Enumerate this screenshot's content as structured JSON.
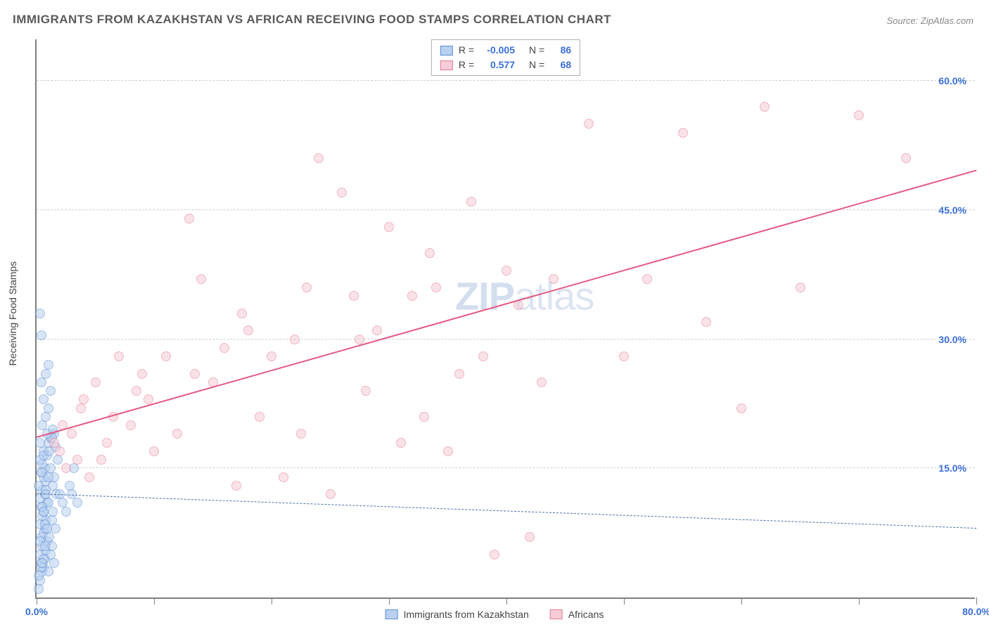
{
  "title": "IMMIGRANTS FROM KAZAKHSTAN VS AFRICAN RECEIVING FOOD STAMPS CORRELATION CHART",
  "source": "Source: ZipAtlas.com",
  "ylabel": "Receiving Food Stamps",
  "watermark_bold": "ZIP",
  "watermark_light": "atlas",
  "chart": {
    "type": "scatter",
    "xlim": [
      0,
      80
    ],
    "ylim": [
      0,
      65
    ],
    "xtick_positions": [
      0,
      10,
      20,
      30,
      40,
      50,
      60,
      70,
      80
    ],
    "xtick_labels_shown": {
      "0": "0.0%",
      "80": "80.0%"
    },
    "ytick_positions": [
      15,
      30,
      45,
      60
    ],
    "ytick_labels": [
      "15.0%",
      "30.0%",
      "45.0%",
      "60.0%"
    ],
    "grid_color": "#d0d0d0",
    "axis_color": "#808080",
    "tick_label_color": "#3a6fd8",
    "background_color": "#ffffff",
    "marker_radius": 7,
    "marker_border_width": 1.2,
    "series": [
      {
        "name": "Immigrants from Kazakhstan",
        "fill": "#b9d1f0",
        "stroke": "#5a8fd6",
        "fill_opacity": 0.55,
        "R": "-0.005",
        "N": "86",
        "trendline": {
          "y_at_x0": 12.0,
          "y_at_x80": 8.0,
          "style": "dashed",
          "color": "#4a6fa8",
          "width": 1.5
        },
        "points": [
          [
            0.2,
            1
          ],
          [
            0.3,
            2
          ],
          [
            0.5,
            3
          ],
          [
            0.6,
            3.5
          ],
          [
            0.4,
            4
          ],
          [
            0.7,
            4.5
          ],
          [
            0.3,
            5
          ],
          [
            0.8,
            5.5
          ],
          [
            0.5,
            6
          ],
          [
            0.9,
            6.5
          ],
          [
            0.4,
            7
          ],
          [
            0.6,
            7.5
          ],
          [
            0.7,
            8
          ],
          [
            0.3,
            8.5
          ],
          [
            0.8,
            9
          ],
          [
            0.5,
            9.5
          ],
          [
            0.6,
            10
          ],
          [
            0.4,
            10.5
          ],
          [
            0.9,
            11
          ],
          [
            0.3,
            11.5
          ],
          [
            0.7,
            12
          ],
          [
            0.5,
            12.5
          ],
          [
            0.2,
            13
          ],
          [
            0.8,
            13.5
          ],
          [
            0.6,
            14
          ],
          [
            0.4,
            14.5
          ],
          [
            0.7,
            15
          ],
          [
            0.5,
            15.5
          ],
          [
            0.3,
            16
          ],
          [
            0.9,
            16.5
          ],
          [
            0.6,
            17
          ],
          [
            1.0,
            3
          ],
          [
            1.2,
            5
          ],
          [
            1.1,
            7
          ],
          [
            1.3,
            9
          ],
          [
            1.0,
            11
          ],
          [
            1.4,
            13
          ],
          [
            1.2,
            15
          ],
          [
            1.5,
            4
          ],
          [
            1.3,
            6
          ],
          [
            1.6,
            8
          ],
          [
            1.4,
            10
          ],
          [
            1.7,
            12
          ],
          [
            1.5,
            14
          ],
          [
            1.8,
            16
          ],
          [
            1.0,
            18
          ],
          [
            1.2,
            18.5
          ],
          [
            1.5,
            19
          ],
          [
            0.5,
            20
          ],
          [
            0.8,
            21
          ],
          [
            1.0,
            22
          ],
          [
            0.6,
            23
          ],
          [
            1.2,
            24
          ],
          [
            0.4,
            25
          ],
          [
            0.8,
            26
          ],
          [
            1.0,
            27
          ],
          [
            0.3,
            33
          ],
          [
            0.4,
            30.5
          ],
          [
            2.0,
            12
          ],
          [
            2.2,
            11
          ],
          [
            2.5,
            10
          ],
          [
            2.8,
            13
          ],
          [
            3.0,
            12
          ],
          [
            3.2,
            15
          ],
          [
            3.5,
            11
          ],
          [
            0.2,
            2.5
          ],
          [
            0.4,
            3.5
          ],
          [
            0.6,
            4.5
          ],
          [
            0.3,
            6.5
          ],
          [
            0.7,
            8.5
          ],
          [
            0.5,
            10.5
          ],
          [
            0.8,
            12.5
          ],
          [
            0.4,
            14.5
          ],
          [
            0.6,
            16.5
          ],
          [
            0.3,
            18
          ],
          [
            1.1,
            17
          ],
          [
            1.3,
            18.5
          ],
          [
            1.6,
            17.5
          ],
          [
            0.9,
            19
          ],
          [
            1.4,
            19.5
          ],
          [
            0.5,
            4
          ],
          [
            0.7,
            6
          ],
          [
            0.9,
            8
          ],
          [
            0.6,
            10
          ],
          [
            0.8,
            12
          ],
          [
            1.0,
            14
          ]
        ]
      },
      {
        "name": "Africans",
        "fill": "#f6cdd7",
        "stroke": "#e47a97",
        "fill_opacity": 0.55,
        "R": "0.577",
        "N": "68",
        "trendline": {
          "y_at_x0": 18.5,
          "y_at_x80": 49.5,
          "style": "solid",
          "color": "#e55a84",
          "width": 2.5
        },
        "points": [
          [
            2,
            17
          ],
          [
            2.5,
            15
          ],
          [
            3,
            19
          ],
          [
            3.5,
            16
          ],
          [
            4,
            23
          ],
          [
            4.5,
            14
          ],
          [
            5,
            25
          ],
          [
            6,
            18
          ],
          [
            7,
            28
          ],
          [
            8,
            20
          ],
          [
            8.5,
            24
          ],
          [
            9,
            26
          ],
          [
            10,
            17
          ],
          [
            11,
            28
          ],
          [
            12,
            19
          ],
          [
            13,
            44
          ],
          [
            14,
            37
          ],
          [
            15,
            25
          ],
          [
            16,
            29
          ],
          [
            17,
            13
          ],
          [
            18,
            31
          ],
          [
            19,
            21
          ],
          [
            20,
            28
          ],
          [
            21,
            14
          ],
          [
            22,
            30
          ],
          [
            23,
            36
          ],
          [
            24,
            51
          ],
          [
            25,
            12
          ],
          [
            26,
            47
          ],
          [
            27,
            35
          ],
          [
            28,
            24
          ],
          [
            29,
            31
          ],
          [
            30,
            43
          ],
          [
            31,
            18
          ],
          [
            32,
            35
          ],
          [
            33,
            21
          ],
          [
            34,
            36
          ],
          [
            35,
            17
          ],
          [
            36,
            26
          ],
          [
            37,
            46
          ],
          [
            38,
            28
          ],
          [
            39,
            5
          ],
          [
            40,
            38
          ],
          [
            41,
            34
          ],
          [
            42,
            7
          ],
          [
            43,
            25
          ],
          [
            44,
            37
          ],
          [
            47,
            55
          ],
          [
            50,
            28
          ],
          [
            52,
            37
          ],
          [
            55,
            54
          ],
          [
            57,
            32
          ],
          [
            60,
            22
          ],
          [
            62,
            57
          ],
          [
            65,
            36
          ],
          [
            70,
            56
          ],
          [
            74,
            51
          ],
          [
            1.5,
            18
          ],
          [
            2.2,
            20
          ],
          [
            3.8,
            22
          ],
          [
            5.5,
            16
          ],
          [
            6.5,
            21
          ],
          [
            9.5,
            23
          ],
          [
            13.5,
            26
          ],
          [
            17.5,
            33
          ],
          [
            22.5,
            19
          ],
          [
            27.5,
            30
          ],
          [
            33.5,
            40
          ]
        ]
      }
    ]
  },
  "legend": {
    "r_label": "R =",
    "n_label": "N ="
  },
  "bottom_legend": [
    {
      "swatch_fill": "#b9d1f0",
      "swatch_stroke": "#5a8fd6",
      "label": "Immigrants from Kazakhstan"
    },
    {
      "swatch_fill": "#f6cdd7",
      "swatch_stroke": "#e47a97",
      "label": "Africans"
    }
  ]
}
